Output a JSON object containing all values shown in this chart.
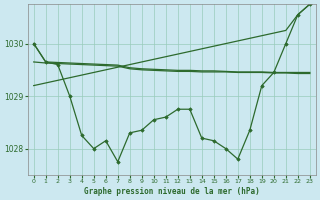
{
  "bg_color": "#cce8f0",
  "grid_color": "#99ccbb",
  "line_color": "#2d6a2d",
  "xlabel": "Graphe pression niveau de la mer (hPa)",
  "xlim": [
    -0.5,
    23.5
  ],
  "ylim": [
    1027.5,
    1030.75
  ],
  "yticks": [
    1028,
    1029,
    1030
  ],
  "xticks": [
    0,
    1,
    2,
    3,
    4,
    5,
    6,
    7,
    8,
    9,
    10,
    11,
    12,
    13,
    14,
    15,
    16,
    17,
    18,
    19,
    20,
    21,
    22,
    23
  ],
  "series_v": [
    1030.0,
    1029.65,
    1029.6,
    1029.0,
    1028.25,
    1028.0,
    1028.15,
    1027.75,
    1028.3,
    1028.35,
    1028.55,
    1028.6,
    1028.75,
    1028.75,
    1028.2,
    1028.15,
    1028.0,
    1027.8,
    1028.35,
    1029.2,
    1029.45,
    1030.0,
    1030.55,
    1030.75
  ],
  "series_flat1": [
    1029.65,
    1029.63,
    1029.62,
    1029.61,
    1029.6,
    1029.59,
    1029.58,
    1029.57,
    1029.52,
    1029.5,
    1029.49,
    1029.48,
    1029.47,
    1029.47,
    1029.46,
    1029.46,
    1029.46,
    1029.45,
    1029.45,
    1029.45,
    1029.44,
    1029.44,
    1029.43,
    1029.43
  ],
  "series_flat2": [
    1030.0,
    1029.65,
    1029.64,
    1029.63,
    1029.62,
    1029.61,
    1029.6,
    1029.59,
    1029.54,
    1029.52,
    1029.51,
    1029.5,
    1029.49,
    1029.49,
    1029.48,
    1029.48,
    1029.47,
    1029.46,
    1029.46,
    1029.46,
    1029.45,
    1029.45,
    1029.45,
    1029.45
  ],
  "series_diag": [
    1029.2,
    1029.25,
    1029.3,
    1029.35,
    1029.4,
    1029.45,
    1029.5,
    1029.55,
    1029.6,
    1029.65,
    1029.7,
    1029.75,
    1029.8,
    1029.85,
    1029.9,
    1029.95,
    1030.0,
    1030.05,
    1030.1,
    1030.15,
    1030.2,
    1030.25,
    1030.55,
    1030.75
  ]
}
